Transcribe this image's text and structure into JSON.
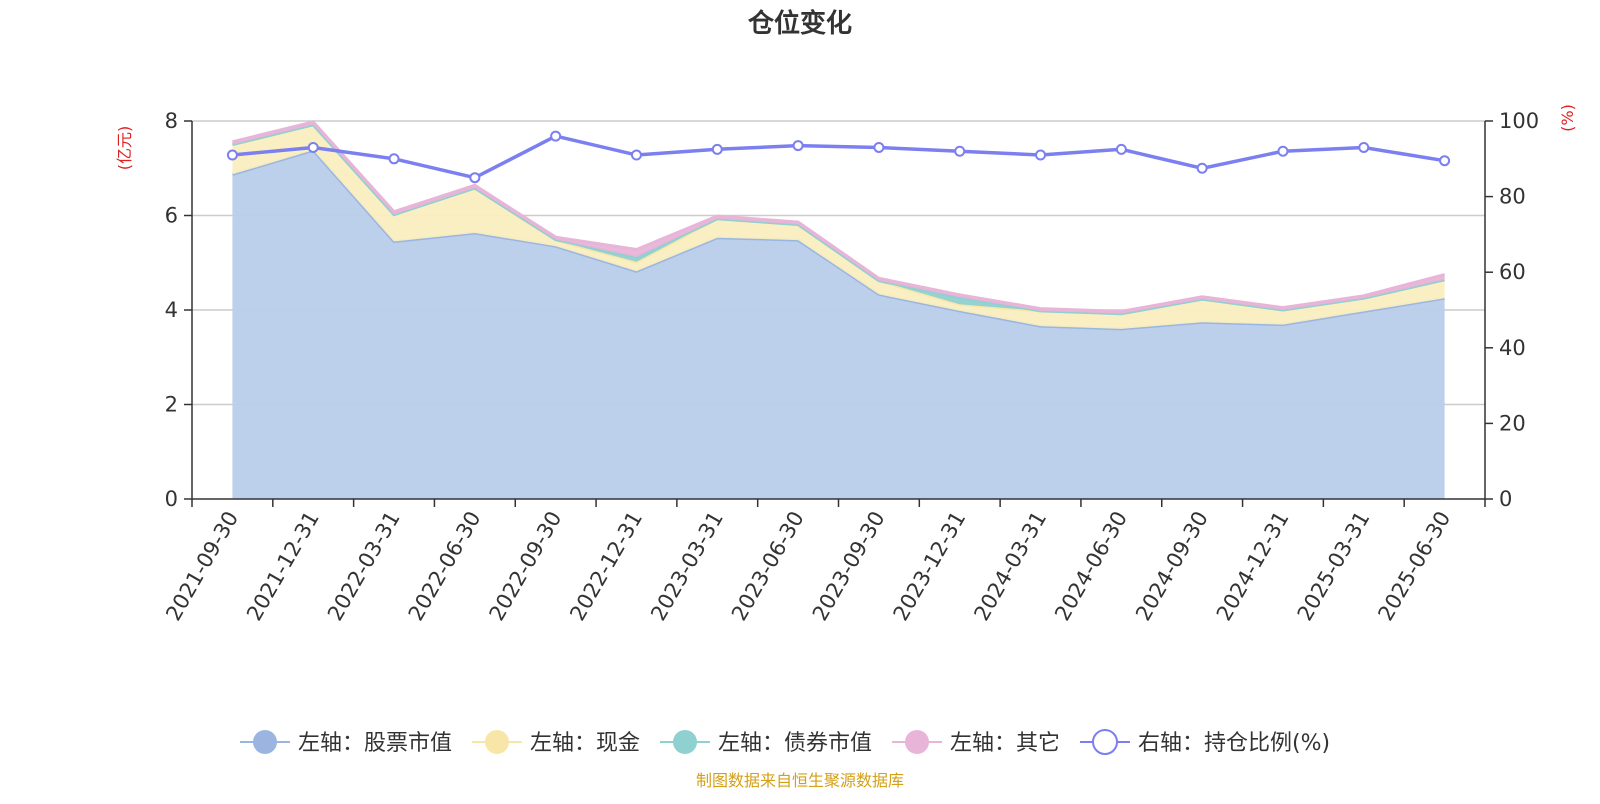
{
  "title": "仓位变化",
  "source": "制图数据来自恒生聚源数据库",
  "colors": {
    "stock": "#9ab6e0",
    "stock_fill": "#b9cdea",
    "cash": "#f8e6a8",
    "cash_fill": "#faeec0",
    "bond": "#8fd0d0",
    "other": "#e8b4d8",
    "ratio": "#7b7ff0",
    "unit": "#e02020",
    "source": "#d4a017"
  },
  "chart_data": {
    "type": "area",
    "categories": [
      "2021-09-30",
      "2021-12-31",
      "2022-03-31",
      "2022-06-30",
      "2022-09-30",
      "2022-12-31",
      "2023-03-31",
      "2023-06-30",
      "2023-09-30",
      "2023-12-31",
      "2024-03-31",
      "2024-06-30",
      "2024-09-30",
      "2024-12-31",
      "2025-03-31",
      "2025-06-30"
    ],
    "left_axis": {
      "unit": "(亿元)",
      "min": 0,
      "max": 8,
      "ticks": [
        0,
        2,
        4,
        6,
        8
      ]
    },
    "right_axis": {
      "unit": "(%)",
      "min": 0,
      "max": 100,
      "ticks": [
        0,
        20,
        40,
        60,
        80,
        100
      ]
    },
    "stacked_series": [
      {
        "name": "左轴：股票市值",
        "key": "stock",
        "values": [
          6.87,
          7.38,
          5.45,
          5.63,
          5.35,
          4.82,
          5.53,
          5.48,
          4.33,
          3.98,
          3.66,
          3.6,
          3.74,
          3.69,
          3.97,
          4.25
        ]
      },
      {
        "name": "左轴：现金",
        "key": "cash",
        "values": [
          0.63,
          0.54,
          0.57,
          0.95,
          0.13,
          0.2,
          0.4,
          0.33,
          0.29,
          0.14,
          0.32,
          0.32,
          0.49,
          0.31,
          0.28,
          0.39
        ]
      },
      {
        "name": "左轴：债券市值",
        "key": "bond",
        "values": [
          0,
          0,
          0,
          0,
          0.01,
          0.1,
          0,
          0,
          0,
          0.15,
          0,
          0,
          0,
          0,
          0,
          0
        ]
      },
      {
        "name": "左轴：其它",
        "key": "other",
        "values": [
          0.06,
          0.06,
          0.06,
          0.06,
          0.05,
          0.16,
          0.06,
          0.05,
          0.05,
          0.05,
          0.05,
          0.05,
          0.05,
          0.05,
          0.05,
          0.11
        ]
      }
    ],
    "line_series": {
      "name": "右轴：持仓比例(%)",
      "key": "ratio",
      "values": [
        91,
        93,
        90,
        85,
        96,
        91,
        92.5,
        93.5,
        93,
        92,
        91,
        92.5,
        87.5,
        92,
        93,
        89.5
      ]
    },
    "grid": true,
    "legend_position": "bottom"
  }
}
